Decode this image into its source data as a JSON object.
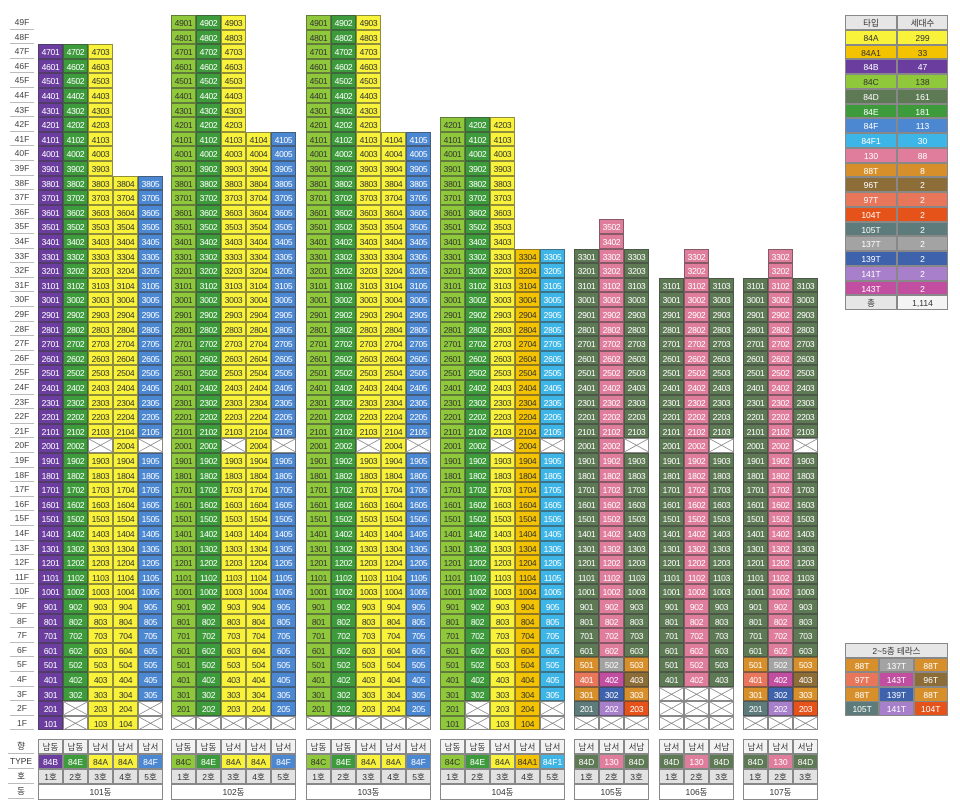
{
  "floors": {
    "max": 49,
    "suffix": "F"
  },
  "colors": {
    "84A": "#f8f23a",
    "84A1": "#f3c200",
    "84B": "#6a3d9f",
    "84C": "#8fc83a",
    "84D": "#5e7a55",
    "84E": "#3e9b3b",
    "84F": "#4c87d1",
    "84F1": "#3db5e6",
    "130": "#e07d9c",
    "88T": "#d78f2b",
    "96T": "#8c6d38",
    "97T": "#e8765b",
    "104T": "#e5531a",
    "105T": "#5e7b7b",
    "137T": "#a3a3a3",
    "139T": "#3e62ac",
    "141T": "#a77fca",
    "143T": "#c24ea1"
  },
  "dark_text_types": [
    "84A",
    "84A1",
    "84C"
  ],
  "buildings": [
    {
      "name": "101동",
      "columns": [
        {
          "type": "84B",
          "orient": "남동",
          "ho": "1호",
          "from": 1,
          "to": 47,
          "voids": []
        },
        {
          "type": "84E",
          "orient": "남동",
          "ho": "2호",
          "from": 1,
          "to": 47,
          "voids": [
            1,
            2
          ]
        },
        {
          "type": "84A",
          "orient": "남서",
          "ho": "3호",
          "from": 1,
          "to": 47,
          "voids": [
            20
          ]
        },
        {
          "type": "84A",
          "orient": "남서",
          "ho": "4호",
          "from": 1,
          "to": 38,
          "voids": []
        },
        {
          "type": "84F",
          "orient": "남서",
          "ho": "5호",
          "from": 1,
          "to": 38,
          "voids": [
            1,
            2,
            20
          ]
        }
      ]
    },
    {
      "name": "102동",
      "columns": [
        {
          "type": "84C",
          "orient": "남동",
          "ho": "1호",
          "from": 1,
          "to": 49,
          "voids": [
            1
          ]
        },
        {
          "type": "84E",
          "orient": "남동",
          "ho": "2호",
          "from": 1,
          "to": 49,
          "voids": [
            1
          ]
        },
        {
          "type": "84A",
          "orient": "남서",
          "ho": "3호",
          "from": 1,
          "to": 49,
          "voids": [
            1,
            20
          ]
        },
        {
          "type": "84A",
          "orient": "남서",
          "ho": "4호",
          "from": 1,
          "to": 41,
          "voids": [
            1
          ]
        },
        {
          "type": "84F",
          "orient": "남서",
          "ho": "5호",
          "from": 1,
          "to": 41,
          "voids": [
            1,
            20
          ]
        }
      ]
    },
    {
      "name": "103동",
      "columns": [
        {
          "type": "84C",
          "orient": "남동",
          "ho": "1호",
          "from": 1,
          "to": 49,
          "voids": [
            1
          ]
        },
        {
          "type": "84E",
          "orient": "남동",
          "ho": "2호",
          "from": 1,
          "to": 49,
          "voids": [
            1
          ]
        },
        {
          "type": "84A",
          "orient": "남서",
          "ho": "3호",
          "from": 1,
          "to": 49,
          "voids": [
            1,
            20
          ]
        },
        {
          "type": "84A",
          "orient": "남서",
          "ho": "4호",
          "from": 1,
          "to": 41,
          "voids": [
            1
          ]
        },
        {
          "type": "84F",
          "orient": "남서",
          "ho": "5호",
          "from": 1,
          "to": 41,
          "voids": [
            1,
            20
          ]
        }
      ]
    },
    {
      "name": "104동",
      "columns": [
        {
          "type": "84C",
          "orient": "남동",
          "ho": "1호",
          "from": 1,
          "to": 42,
          "voids": []
        },
        {
          "type": "84E",
          "orient": "남동",
          "ho": "2호",
          "from": 1,
          "to": 42,
          "voids": [
            1,
            2
          ]
        },
        {
          "type": "84A",
          "orient": "남서",
          "ho": "3호",
          "from": 1,
          "to": 42,
          "voids": [
            20
          ]
        },
        {
          "type": "84A1",
          "orient": "남서",
          "ho": "4호",
          "from": 1,
          "to": 33,
          "voids": []
        },
        {
          "type": "84F1",
          "orient": "남서",
          "ho": "5호",
          "from": 1,
          "to": 33,
          "voids": [
            1,
            2,
            20
          ]
        }
      ]
    },
    {
      "name": "105동",
      "columns": [
        {
          "type": "84D",
          "orient": "남서",
          "ho": "1호",
          "from": 1,
          "to": 33,
          "voids": [
            1
          ],
          "terrace": {
            "5": "88T",
            "4": "97T",
            "3": "88T",
            "2": "105T"
          }
        },
        {
          "type": "130",
          "orient": "남서",
          "ho": "2호",
          "from": 1,
          "to": 35,
          "voids": [
            1
          ],
          "terrace": {
            "5": "137T",
            "4": "143T",
            "3": "139T",
            "2": "141T"
          }
        },
        {
          "type": "84D",
          "orient": "서남",
          "ho": "3호",
          "from": 1,
          "to": 33,
          "voids": [
            1,
            20
          ],
          "terrace": {
            "5": "88T",
            "4": "96T",
            "3": "88T",
            "2": "104T"
          }
        }
      ]
    },
    {
      "name": "106동",
      "columns": [
        {
          "type": "84D",
          "orient": "남서",
          "ho": "1호",
          "from": 1,
          "to": 31,
          "voids": [
            1,
            2,
            3
          ]
        },
        {
          "type": "130",
          "orient": "남서",
          "ho": "2호",
          "from": 1,
          "to": 33,
          "voids": [
            1,
            2,
            3
          ]
        },
        {
          "type": "84D",
          "orient": "서남",
          "ho": "3호",
          "from": 1,
          "to": 31,
          "voids": [
            1,
            2,
            3,
            20
          ]
        }
      ]
    },
    {
      "name": "107동",
      "columns": [
        {
          "type": "84D",
          "orient": "남서",
          "ho": "1호",
          "from": 1,
          "to": 31,
          "voids": [
            1
          ],
          "terrace": {
            "5": "88T",
            "4": "97T",
            "3": "88T",
            "2": "105T"
          }
        },
        {
          "type": "130",
          "orient": "남서",
          "ho": "2호",
          "from": 1,
          "to": 33,
          "voids": [
            1
          ],
          "terrace": {
            "5": "137T",
            "4": "143T",
            "3": "139T",
            "2": "141T"
          }
        },
        {
          "type": "84D",
          "orient": "서남",
          "ho": "3호",
          "from": 1,
          "to": 31,
          "voids": [
            1,
            20
          ],
          "terrace": {
            "5": "88T",
            "4": "96T",
            "3": "88T",
            "2": "104T"
          }
        }
      ]
    }
  ],
  "row_labels": {
    "orient": "향",
    "type": "TYPE",
    "ho": "호",
    "dong": "동"
  },
  "legend": {
    "header": [
      "타입",
      "세대수"
    ],
    "rows": [
      [
        "84A",
        "299"
      ],
      [
        "84A1",
        "33"
      ],
      [
        "84B",
        "47"
      ],
      [
        "84C",
        "138"
      ],
      [
        "84D",
        "161"
      ],
      [
        "84E",
        "181"
      ],
      [
        "84F",
        "113"
      ],
      [
        "84F1",
        "30"
      ],
      [
        "130",
        "88"
      ],
      [
        "88T",
        "8"
      ],
      [
        "96T",
        "2"
      ],
      [
        "97T",
        "2"
      ],
      [
        "104T",
        "2"
      ],
      [
        "105T",
        "2"
      ],
      [
        "137T",
        "2"
      ],
      [
        "139T",
        "2"
      ],
      [
        "141T",
        "2"
      ],
      [
        "143T",
        "2"
      ]
    ],
    "total": [
      "총",
      "1,114"
    ]
  },
  "terrace_legend": {
    "title": "2~5층 테라스",
    "rows": [
      [
        "88T",
        "137T",
        "88T"
      ],
      [
        "97T",
        "143T",
        "96T"
      ],
      [
        "88T",
        "139T",
        "88T"
      ],
      [
        "105T",
        "141T",
        "104T"
      ]
    ]
  }
}
